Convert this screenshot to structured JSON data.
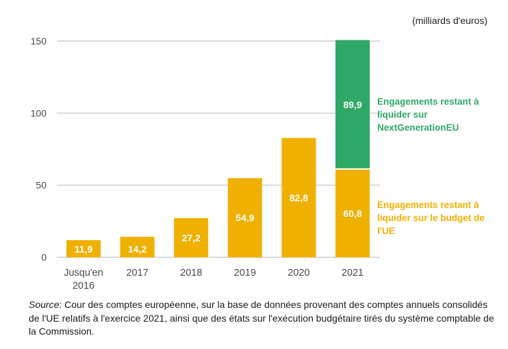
{
  "chart_data": {
    "type": "bar",
    "stacked": true,
    "title": "",
    "unit_label": "(milliards d'euros)",
    "xlabel": "",
    "ylabel": "",
    "ylim": [
      0,
      150
    ],
    "yticks": [
      0,
      50,
      100,
      150
    ],
    "grid": true,
    "categories": [
      "Jusqu'en 2016",
      "2017",
      "2018",
      "2019",
      "2020",
      "2021"
    ],
    "category_lines": [
      [
        "Jusqu'en",
        "2016"
      ],
      [
        "2017"
      ],
      [
        "2018"
      ],
      [
        "2019"
      ],
      [
        "2020"
      ],
      [
        "2021"
      ]
    ],
    "series": [
      {
        "name": "Engagements restant à liquider sur le budget de l'UE",
        "color": "#f0b000",
        "values": [
          11.9,
          14.2,
          27.2,
          54.9,
          82.8,
          60.8
        ],
        "labels": [
          "11,9",
          "14,2",
          "27,2",
          "54,9",
          "82,8",
          "60,8"
        ]
      },
      {
        "name": "Engagements restant à liquider sur NextGenerationEU",
        "color": "#2ea866",
        "values": [
          null,
          null,
          null,
          null,
          null,
          89.9
        ],
        "labels": [
          null,
          null,
          null,
          null,
          null,
          "89,9"
        ]
      }
    ],
    "legend": {
      "placement": "right",
      "entries": [
        {
          "series": 1,
          "lines": [
            "Engagements restant à",
            "liquider sur",
            "NextGenerationEU"
          ]
        },
        {
          "series": 0,
          "lines": [
            "Engagements restant à",
            "liquider sur le budget de",
            "l'UE"
          ]
        }
      ]
    }
  },
  "source": {
    "label": "Source",
    "text": ": Cour des comptes européenne, sur la base de données provenant des comptes annuels consolidés de l'UE relatifs à l'exercice 2021, ainsi que des états sur l'exécution budgétaire tirés du système comptable de la Commission."
  }
}
